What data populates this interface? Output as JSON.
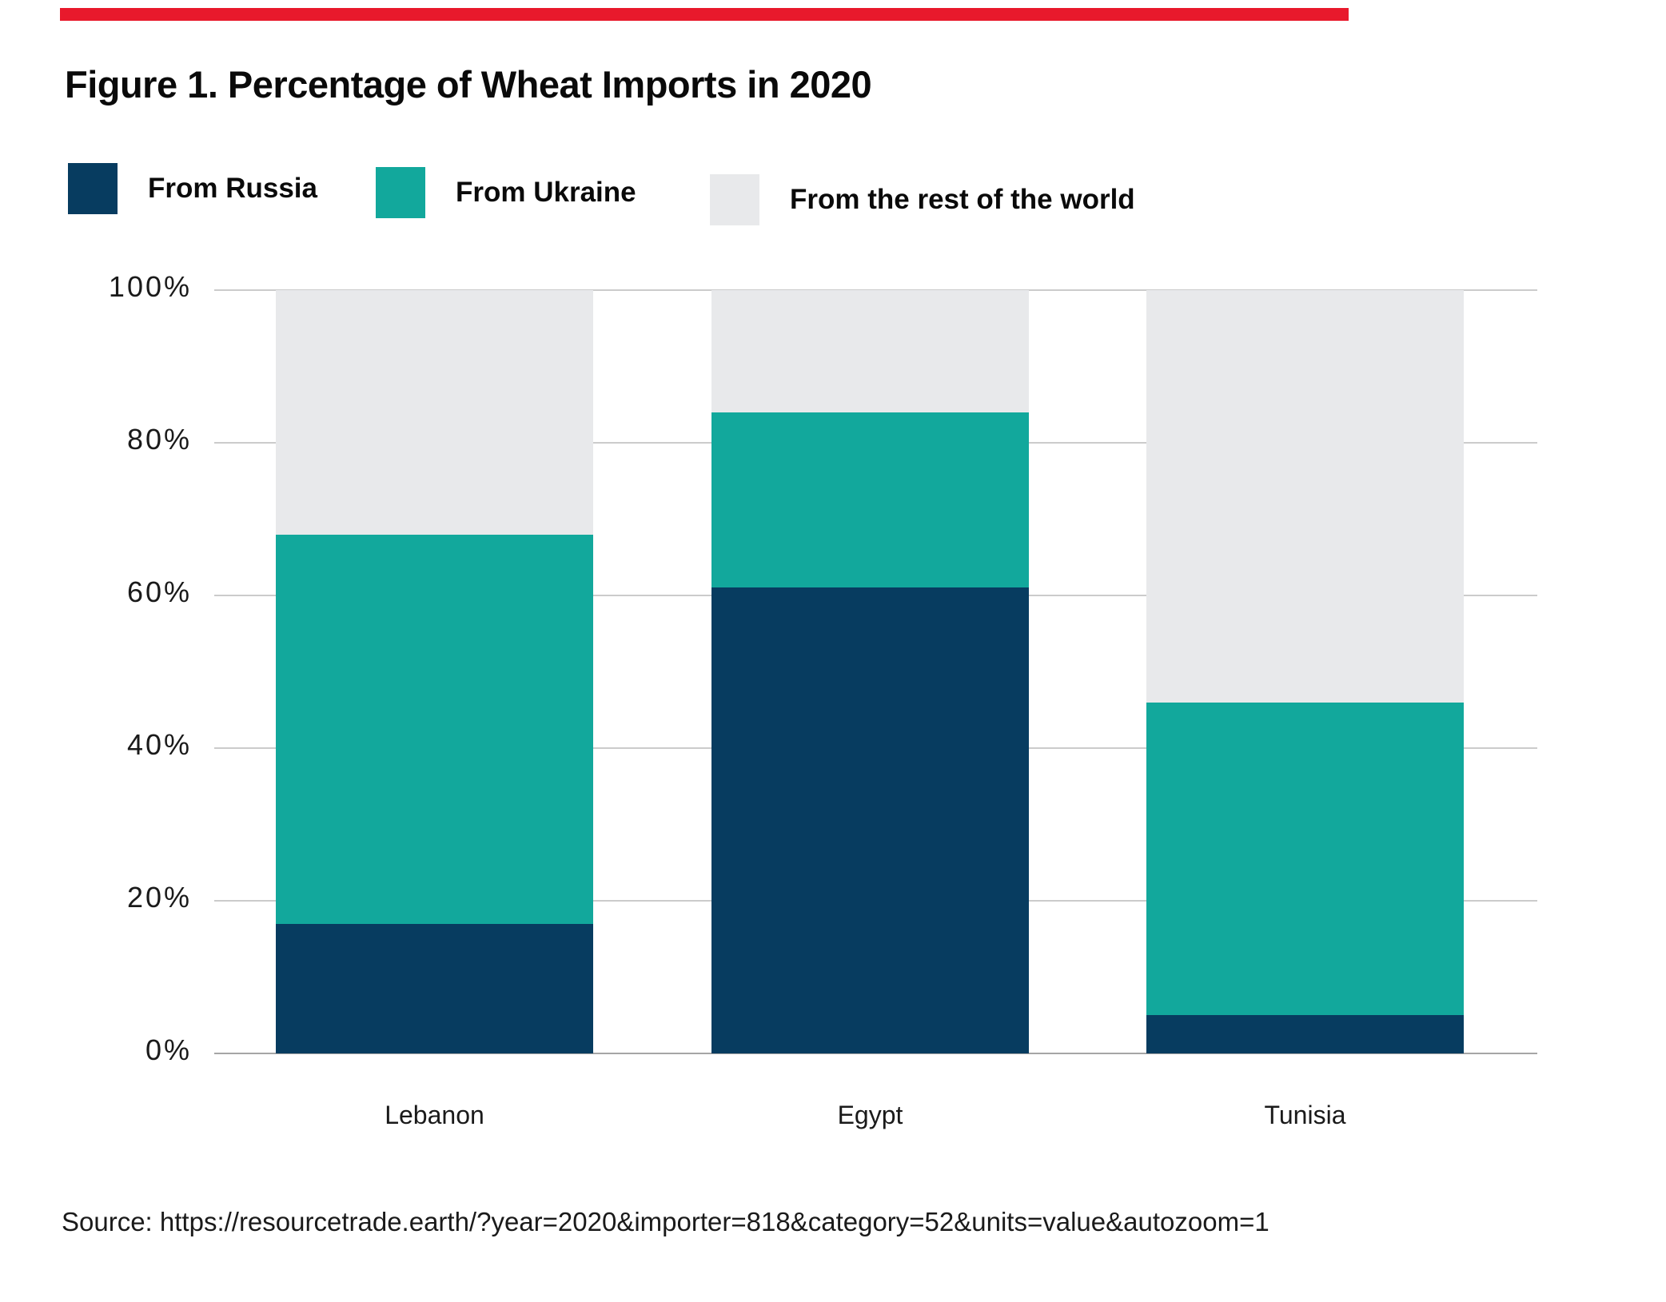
{
  "page": {
    "background": "#ffffff",
    "accent_bar_color": "#e8192c",
    "text_color": "#111111"
  },
  "figure_title": "Figure 1. Percentage of Wheat Imports in 2020",
  "source_line": "Source: https://resourcetrade.earth/?year=2020&importer=818&category=52&units=value&autozoom=1",
  "chart_data": {
    "type": "bar",
    "stacked": true,
    "title": "Figure 1. Percentage of Wheat Imports in 2020",
    "categories": [
      "Lebanon",
      "Egypt",
      "Tunisia"
    ],
    "series": [
      {
        "name": "From Russia",
        "color": "#073c60",
        "values": [
          17,
          61,
          5
        ]
      },
      {
        "name": "From Ukraine",
        "color": "#12a89c",
        "values": [
          51,
          23,
          41
        ]
      },
      {
        "name": "From the rest of the world",
        "color": "#e8e9eb",
        "values": [
          32,
          16,
          54
        ]
      }
    ],
    "xlabel": "",
    "ylabel": "",
    "ylim": [
      0,
      100
    ],
    "yticks": [
      0,
      20,
      40,
      60,
      80,
      100
    ],
    "ytick_labels": [
      "0%",
      "20%",
      "40%",
      "60%",
      "80%",
      "100%"
    ],
    "grid": true,
    "gridline_color": "#cbcbcb",
    "axis_line_color": "#a6a6a6",
    "legend_position": "top-left"
  }
}
